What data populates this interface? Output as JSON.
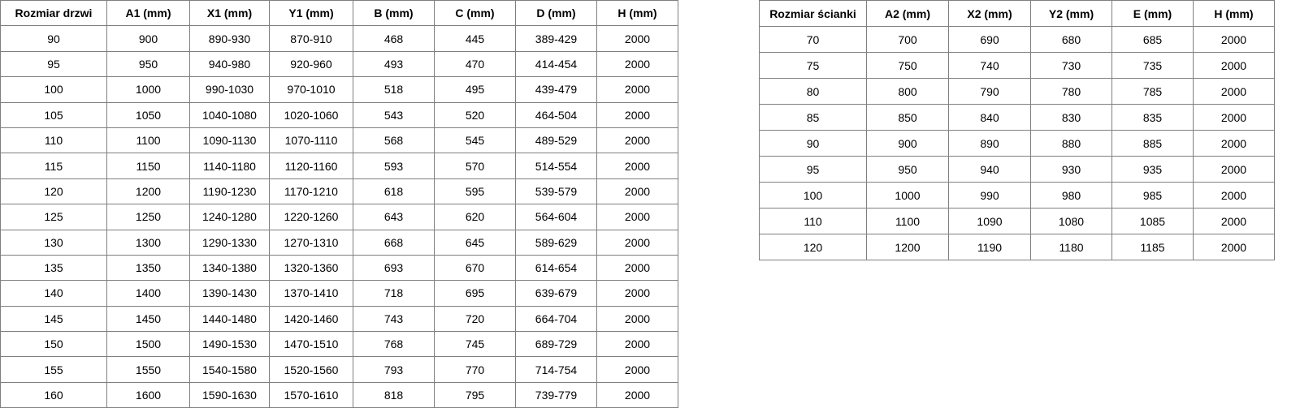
{
  "door_table": {
    "headers": [
      "Rozmiar drzwi",
      "A1 (mm)",
      "X1 (mm)",
      "Y1 (mm)",
      "B (mm)",
      "C (mm)",
      "D (mm)",
      "H (mm)"
    ],
    "rows": [
      [
        "90",
        "900",
        "890-930",
        "870-910",
        "468",
        "445",
        "389-429",
        "2000"
      ],
      [
        "95",
        "950",
        "940-980",
        "920-960",
        "493",
        "470",
        "414-454",
        "2000"
      ],
      [
        "100",
        "1000",
        "990-1030",
        "970-1010",
        "518",
        "495",
        "439-479",
        "2000"
      ],
      [
        "105",
        "1050",
        "1040-1080",
        "1020-1060",
        "543",
        "520",
        "464-504",
        "2000"
      ],
      [
        "110",
        "1100",
        "1090-1130",
        "1070-1110",
        "568",
        "545",
        "489-529",
        "2000"
      ],
      [
        "115",
        "1150",
        "1140-1180",
        "1120-1160",
        "593",
        "570",
        "514-554",
        "2000"
      ],
      [
        "120",
        "1200",
        "1190-1230",
        "1170-1210",
        "618",
        "595",
        "539-579",
        "2000"
      ],
      [
        "125",
        "1250",
        "1240-1280",
        "1220-1260",
        "643",
        "620",
        "564-604",
        "2000"
      ],
      [
        "130",
        "1300",
        "1290-1330",
        "1270-1310",
        "668",
        "645",
        "589-629",
        "2000"
      ],
      [
        "135",
        "1350",
        "1340-1380",
        "1320-1360",
        "693",
        "670",
        "614-654",
        "2000"
      ],
      [
        "140",
        "1400",
        "1390-1430",
        "1370-1410",
        "718",
        "695",
        "639-679",
        "2000"
      ],
      [
        "145",
        "1450",
        "1440-1480",
        "1420-1460",
        "743",
        "720",
        "664-704",
        "2000"
      ],
      [
        "150",
        "1500",
        "1490-1530",
        "1470-1510",
        "768",
        "745",
        "689-729",
        "2000"
      ],
      [
        "155",
        "1550",
        "1540-1580",
        "1520-1560",
        "793",
        "770",
        "714-754",
        "2000"
      ],
      [
        "160",
        "1600",
        "1590-1630",
        "1570-1610",
        "818",
        "795",
        "739-779",
        "2000"
      ]
    ]
  },
  "wall_table": {
    "headers": [
      "Rozmiar ścianki",
      "A2 (mm)",
      "X2 (mm)",
      "Y2 (mm)",
      "E (mm)",
      "H (mm)"
    ],
    "rows": [
      [
        "70",
        "700",
        "690",
        "680",
        "685",
        "2000"
      ],
      [
        "75",
        "750",
        "740",
        "730",
        "735",
        "2000"
      ],
      [
        "80",
        "800",
        "790",
        "780",
        "785",
        "2000"
      ],
      [
        "85",
        "850",
        "840",
        "830",
        "835",
        "2000"
      ],
      [
        "90",
        "900",
        "890",
        "880",
        "885",
        "2000"
      ],
      [
        "95",
        "950",
        "940",
        "930",
        "935",
        "2000"
      ],
      [
        "100",
        "1000",
        "990",
        "980",
        "985",
        "2000"
      ],
      [
        "110",
        "1100",
        "1090",
        "1080",
        "1085",
        "2000"
      ],
      [
        "120",
        "1200",
        "1190",
        "1180",
        "1185",
        "2000"
      ]
    ]
  }
}
